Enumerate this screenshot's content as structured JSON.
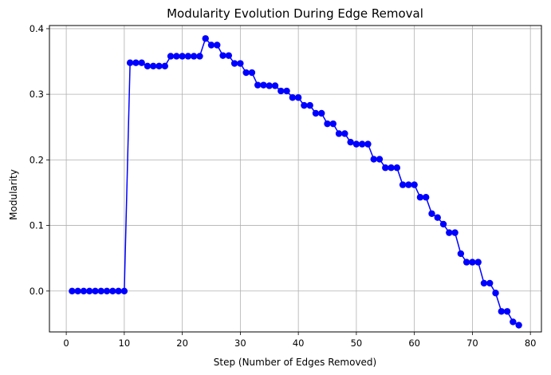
{
  "chart_data": {
    "type": "line",
    "title": "Modularity Evolution During Edge Removal",
    "xlabel": "Step (Number of Edges Removed)",
    "ylabel": "Modularity",
    "xlim": [
      -2.9,
      81.9
    ],
    "ylim": [
      -0.0623,
      0.4048
    ],
    "xticks": [
      0,
      10,
      20,
      30,
      40,
      50,
      60,
      70,
      80
    ],
    "yticks": [
      0.0,
      0.1,
      0.2,
      0.3,
      0.4
    ],
    "ytick_labels": [
      "0.0",
      "0.1",
      "0.2",
      "0.3",
      "0.4"
    ],
    "grid": true,
    "legend": "none",
    "colors": {
      "series": "#0000ff",
      "grid": "#b0b0b0",
      "axis": "#000000"
    },
    "series": [
      {
        "marker": "circle",
        "x": [
          1,
          2,
          3,
          4,
          5,
          6,
          7,
          8,
          9,
          10,
          11,
          12,
          13,
          14,
          15,
          16,
          17,
          18,
          19,
          20,
          21,
          22,
          23,
          24,
          25,
          26,
          27,
          28,
          29,
          30,
          31,
          32,
          33,
          34,
          35,
          36,
          37,
          38,
          39,
          40,
          41,
          42,
          43,
          44,
          45,
          46,
          47,
          48,
          49,
          50,
          51,
          52,
          53,
          54,
          55,
          56,
          57,
          58,
          59,
          60,
          61,
          62,
          63,
          64,
          65,
          66,
          67,
          68,
          69,
          70,
          71,
          72,
          73,
          74,
          75,
          76,
          77,
          78
        ],
        "values": [
          0,
          0,
          0,
          0,
          0,
          0,
          0,
          0,
          0,
          0,
          0.348,
          0.348,
          0.348,
          0.343,
          0.343,
          0.343,
          0.343,
          0.358,
          0.358,
          0.358,
          0.358,
          0.358,
          0.358,
          0.385,
          0.375,
          0.375,
          0.359,
          0.359,
          0.347,
          0.347,
          0.333,
          0.333,
          0.314,
          0.314,
          0.313,
          0.313,
          0.305,
          0.305,
          0.295,
          0.295,
          0.283,
          0.283,
          0.271,
          0.271,
          0.255,
          0.255,
          0.24,
          0.24,
          0.227,
          0.224,
          0.224,
          0.224,
          0.201,
          0.201,
          0.188,
          0.188,
          0.188,
          0.162,
          0.162,
          0.162,
          0.143,
          0.143,
          0.118,
          0.112,
          0.102,
          0.089,
          0.089,
          0.057,
          0.044,
          0.044,
          0.044,
          0.012,
          0.012,
          -0.003,
          -0.031,
          -0.031,
          -0.047,
          -0.052
        ]
      }
    ]
  }
}
